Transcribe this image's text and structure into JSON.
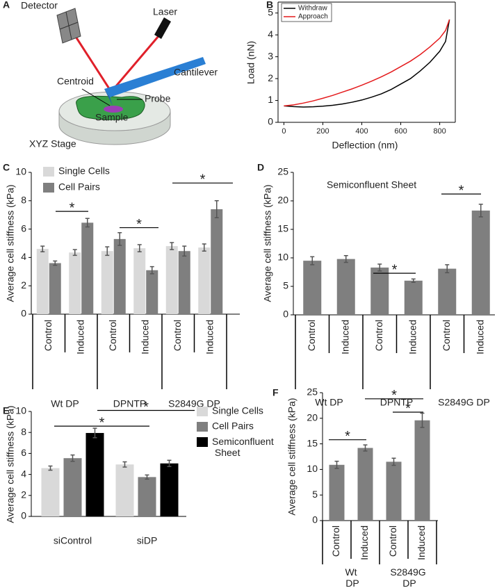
{
  "diagram": {
    "panel": "A",
    "labels": {
      "detector": "Detector",
      "laser": "Laser",
      "cantilever": "Cantilever",
      "centroid": "Centroid",
      "probe": "Probe",
      "sample": "Sample",
      "stage": "XYZ Stage"
    }
  },
  "chart_data": [
    {
      "panel": "B",
      "type": "line",
      "xlabel": "Deflection (nm)",
      "ylabel": "Load (nN)",
      "x": [
        0,
        50,
        100,
        150,
        200,
        250,
        300,
        350,
        400,
        450,
        500,
        550,
        600,
        650,
        700,
        750,
        800,
        830,
        850
      ],
      "series": [
        {
          "name": "Withdraw",
          "color": "#000000",
          "values": [
            0.75,
            0.72,
            0.7,
            0.71,
            0.74,
            0.78,
            0.84,
            0.92,
            1.02,
            1.15,
            1.3,
            1.5,
            1.75,
            2.0,
            2.35,
            2.75,
            3.25,
            3.7,
            4.7
          ]
        },
        {
          "name": "Approach",
          "color": "#e41a1c",
          "values": [
            0.75,
            0.8,
            0.88,
            0.98,
            1.1,
            1.23,
            1.38,
            1.53,
            1.7,
            1.88,
            2.08,
            2.3,
            2.55,
            2.8,
            3.1,
            3.45,
            3.85,
            4.2,
            4.7
          ]
        }
      ],
      "xlim": [
        -30,
        880
      ],
      "ylim": [
        0,
        5.5
      ],
      "xticks": [
        0,
        200,
        400,
        600,
        800
      ],
      "yticks": [
        0,
        1,
        2,
        3,
        4,
        5
      ],
      "legend": "upper left"
    },
    {
      "panel": "C",
      "type": "bar",
      "ylabel": "Average cell stiffness (kPa)",
      "categories": [
        "Control",
        "Induced",
        "Control",
        "Induced",
        "Control",
        "Induced"
      ],
      "group_labels": [
        "Wt DP",
        "DPNTP",
        "S2849G DP"
      ],
      "series": [
        {
          "name": "Single Cells",
          "color": "#d9d9d9",
          "values": [
            4.6,
            4.35,
            4.45,
            4.65,
            4.8,
            4.7
          ],
          "errors": [
            0.2,
            0.2,
            0.3,
            0.25,
            0.25,
            0.25
          ]
        },
        {
          "name": "Cell Pairs",
          "color": "#7f7f7f",
          "values": [
            3.6,
            6.45,
            5.3,
            3.1,
            4.45,
            7.4
          ],
          "errors": [
            0.15,
            0.3,
            0.45,
            0.25,
            0.35,
            0.6
          ]
        }
      ],
      "annotations": [
        "*",
        "*",
        "*"
      ],
      "ylim": [
        0,
        10
      ],
      "yticks": [
        0,
        2,
        4,
        6,
        8,
        10
      ],
      "legend": "upper left"
    },
    {
      "panel": "D",
      "type": "bar",
      "ylabel": "Average cell stiffness (kPa)",
      "subtitle": "Semiconfluent Sheet",
      "categories": [
        "Control",
        "Induced",
        "Control",
        "Induced",
        "Control",
        "Induced"
      ],
      "group_labels": [
        "Wt DP",
        "DPNTP",
        "S2849G DP"
      ],
      "values": [
        9.5,
        9.8,
        8.3,
        6.0,
        8.1,
        18.3
      ],
      "errors": [
        0.7,
        0.6,
        0.6,
        0.3,
        0.7,
        1.1
      ],
      "color": "#7f7f7f",
      "annotations": [
        "*",
        "*"
      ],
      "ylim": [
        0,
        25
      ],
      "yticks": [
        0,
        5,
        10,
        15,
        20,
        25
      ]
    },
    {
      "panel": "E",
      "type": "bar",
      "ylabel": "Average cell stiffness (kPa)",
      "categories": [
        "siControl",
        "siDP"
      ],
      "series": [
        {
          "name": "Single Cells",
          "color": "#d9d9d9",
          "values": [
            4.6,
            4.95
          ],
          "errors": [
            0.2,
            0.25
          ]
        },
        {
          "name": "Cell Pairs",
          "color": "#7f7f7f",
          "values": [
            5.55,
            3.75
          ],
          "errors": [
            0.3,
            0.2
          ]
        },
        {
          "name": "Semiconfluent Sheet",
          "color": "#000000",
          "values": [
            7.95,
            5.05
          ],
          "errors": [
            0.45,
            0.3
          ]
        }
      ],
      "annotations": [
        "*",
        "*"
      ],
      "ylim": [
        0,
        10
      ],
      "yticks": [
        0,
        2,
        4,
        6,
        8,
        10
      ],
      "legend": "right"
    },
    {
      "panel": "F",
      "type": "bar",
      "ylabel": "Average cell stiffness (kPa)",
      "categories": [
        "Control",
        "Induced",
        "Control",
        "Induced"
      ],
      "group_labels": [
        "Wt DP",
        "S2849G DP"
      ],
      "values": [
        10.9,
        14.2,
        11.5,
        19.6
      ],
      "errors": [
        0.7,
        0.6,
        0.7,
        1.4
      ],
      "color": "#7f7f7f",
      "annotations": [
        "*",
        "*",
        "*"
      ],
      "ylim": [
        0,
        25
      ],
      "yticks": [
        0,
        5,
        10,
        15,
        20,
        25
      ]
    }
  ]
}
